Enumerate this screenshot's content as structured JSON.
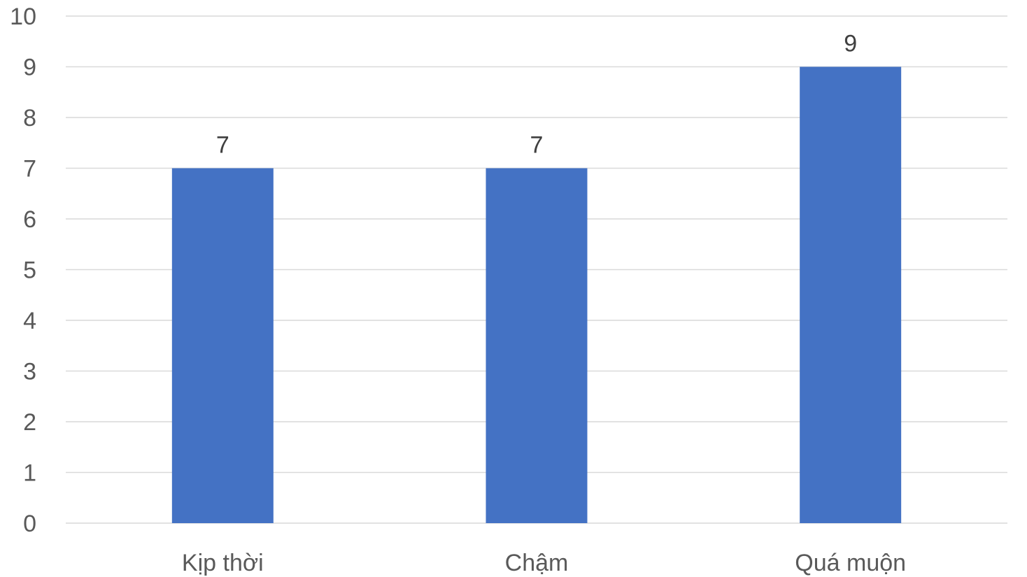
{
  "chart_data": {
    "type": "bar",
    "categories": [
      "Kịp thời",
      "Chậm",
      "Quá muộn"
    ],
    "values": [
      7,
      7,
      9
    ],
    "title": "",
    "xlabel": "",
    "ylabel": "",
    "ylim": [
      0,
      10
    ],
    "yticks": [
      0,
      1,
      2,
      3,
      4,
      5,
      6,
      7,
      8,
      9,
      10
    ],
    "grid": true,
    "legend": "none",
    "data_labels": true,
    "bar_color": "#4472C4"
  }
}
